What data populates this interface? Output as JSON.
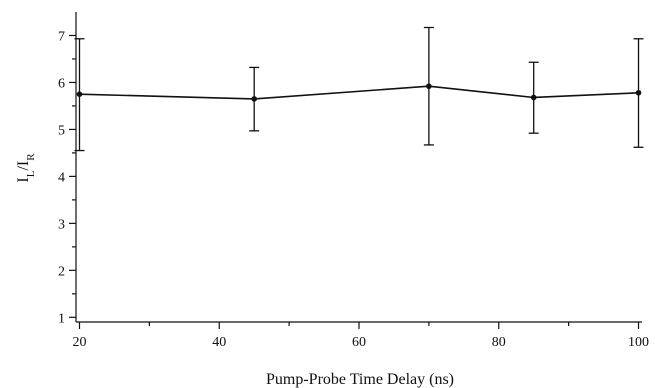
{
  "chart_data": {
    "type": "line",
    "xlabel": "Pump-Probe Time Delay (ns)",
    "ylabel": {
      "main": "I",
      "sub1": "L",
      "mid": "/I",
      "sub2": "R"
    },
    "xlim": [
      19.5,
      100.5
    ],
    "ylim": [
      0.9,
      7.5
    ],
    "xticks": [
      20,
      40,
      60,
      80,
      100
    ],
    "yticks": [
      1,
      2,
      3,
      4,
      5,
      6,
      7
    ],
    "minor_xticks": [
      30,
      50,
      70,
      90
    ],
    "minor_yticks": [
      1.5,
      2.5,
      3.5,
      4.5,
      5.5,
      6.5
    ],
    "grid": false,
    "series": [
      {
        "x": [
          20,
          45,
          70,
          85,
          100
        ],
        "y": [
          5.75,
          5.65,
          5.92,
          5.68,
          5.78
        ],
        "err_low": [
          4.55,
          4.97,
          4.67,
          4.92,
          4.62
        ],
        "err_high": [
          6.93,
          6.32,
          7.17,
          6.43,
          6.93
        ]
      }
    ]
  }
}
